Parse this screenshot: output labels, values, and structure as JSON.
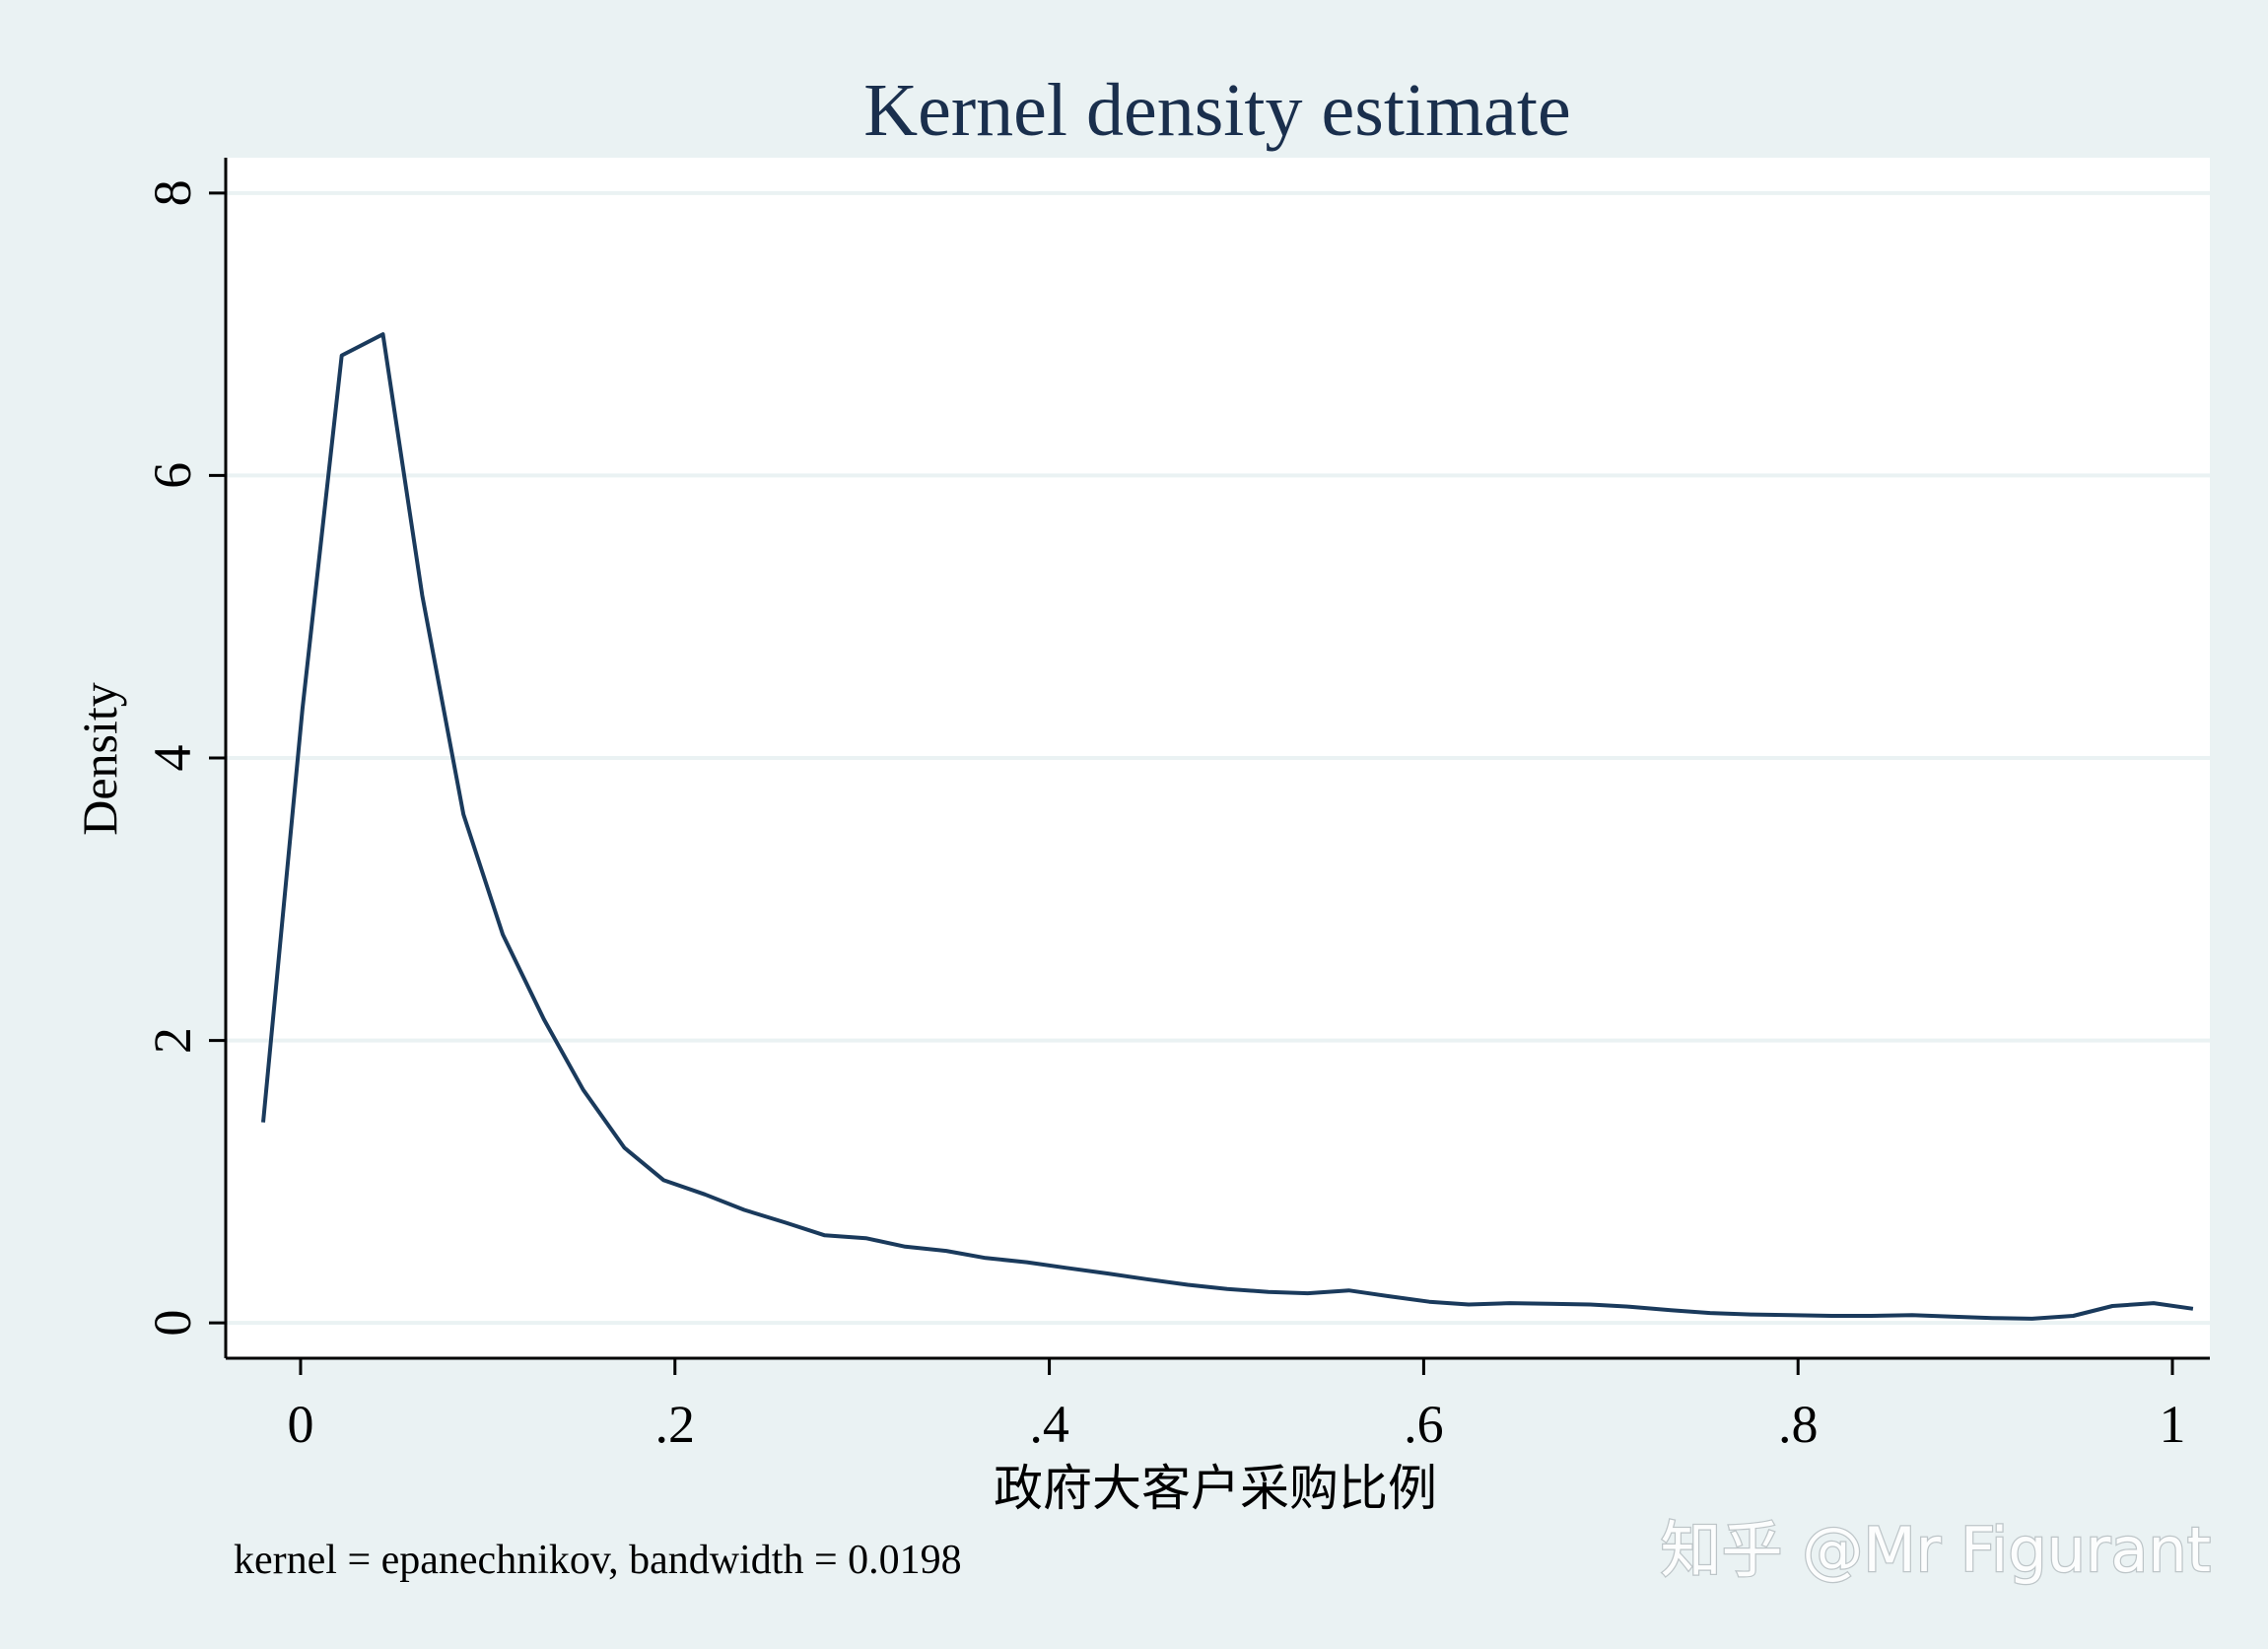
{
  "chart_data": {
    "type": "line",
    "title": "Kernel density estimate",
    "xlabel": "政府大客户采购比例",
    "ylabel": "Density",
    "note": "kernel = epanechnikov, bandwidth = 0.0198",
    "xlim": [
      -0.04,
      1.02
    ],
    "ylim": [
      -0.25,
      8.25
    ],
    "x_ticks": [
      0,
      0.2,
      0.4,
      0.6,
      0.8,
      1
    ],
    "x_tick_labels": [
      "0",
      ".2",
      ".4",
      ".6",
      ".8",
      "1"
    ],
    "y_ticks": [
      0,
      2,
      4,
      6,
      8
    ],
    "y_tick_labels": [
      "0",
      "2",
      "4",
      "6",
      "8"
    ],
    "grid": true,
    "colors": {
      "line": "#1a3a5c",
      "plot_bg": "#ffffff",
      "outer_bg": "#eaf2f3",
      "grid": "#eaf2f3",
      "title": "#1a2f4d"
    },
    "series": [
      {
        "x": [
          -0.02,
          0.001,
          0.022,
          0.044,
          0.065,
          0.087,
          0.108,
          0.13,
          0.151,
          0.173,
          0.194,
          0.216,
          0.237,
          0.259,
          0.28,
          0.302,
          0.323,
          0.345,
          0.366,
          0.388,
          0.409,
          0.431,
          0.452,
          0.474,
          0.495,
          0.517,
          0.538,
          0.56,
          0.581,
          0.603,
          0.624,
          0.646,
          0.667,
          0.689,
          0.71,
          0.732,
          0.753,
          0.775,
          0.796,
          0.818,
          0.839,
          0.861,
          0.882,
          0.904,
          0.925,
          0.947,
          0.968,
          0.99,
          1.011
        ],
        "y": [
          1.42,
          4.35,
          6.85,
          7.0,
          5.15,
          3.6,
          2.75,
          2.15,
          1.65,
          1.24,
          1.01,
          0.91,
          0.8,
          0.71,
          0.62,
          0.6,
          0.54,
          0.51,
          0.46,
          0.43,
          0.39,
          0.35,
          0.31,
          0.27,
          0.24,
          0.22,
          0.21,
          0.23,
          0.19,
          0.15,
          0.13,
          0.14,
          0.135,
          0.13,
          0.115,
          0.09,
          0.07,
          0.06,
          0.055,
          0.05,
          0.05,
          0.055,
          0.045,
          0.035,
          0.03,
          0.05,
          0.12,
          0.14,
          0.1
        ]
      }
    ]
  },
  "watermark": "知乎 @Mr Figurant"
}
